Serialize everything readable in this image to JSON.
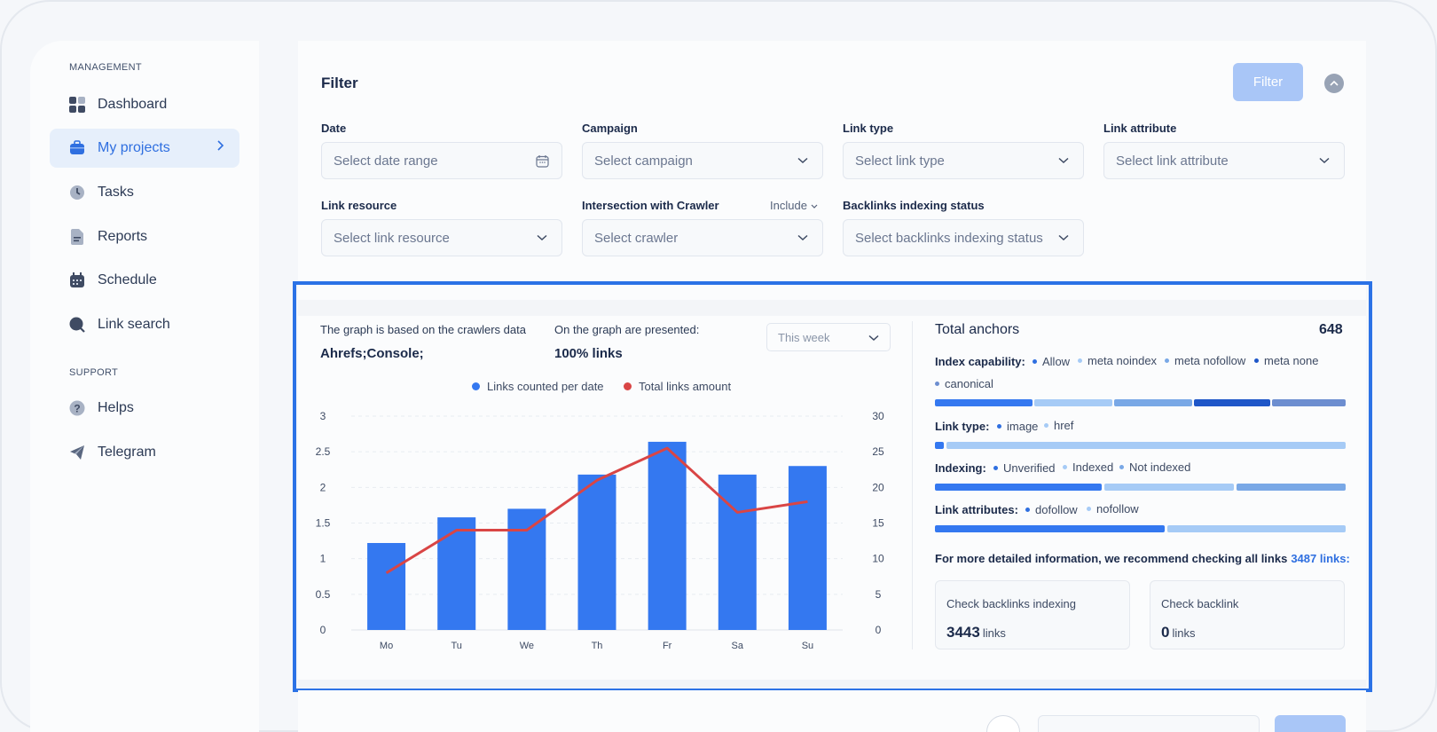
{
  "sidebar": {
    "management_label": "MANAGEMENT",
    "support_label": "SUPPORT",
    "items": [
      {
        "label": "Dashboard",
        "icon": "dashboard-icon"
      },
      {
        "label": "My projects",
        "icon": "briefcase-icon"
      },
      {
        "label": "Tasks",
        "icon": "clock-icon"
      },
      {
        "label": "Reports",
        "icon": "document-icon"
      },
      {
        "label": "Schedule",
        "icon": "calendar-icon"
      },
      {
        "label": "Link search",
        "icon": "search-icon"
      }
    ],
    "support_items": [
      {
        "label": "Helps",
        "icon": "help-icon"
      },
      {
        "label": "Telegram",
        "icon": "telegram-icon"
      }
    ]
  },
  "filter": {
    "title": "Filter",
    "button_label": "Filter",
    "fields": [
      {
        "label": "Date",
        "placeholder": "Select date range"
      },
      {
        "label": "Campaign",
        "placeholder": "Select campaign"
      },
      {
        "label": "Link type",
        "placeholder": "Select link type"
      },
      {
        "label": "Link attribute",
        "placeholder": "Select link attribute"
      },
      {
        "label": "Link resource",
        "placeholder": "Select link resource"
      },
      {
        "label": "Intersection with Crawler",
        "placeholder": "Select crawler"
      },
      {
        "label": "Backlinks indexing status",
        "placeholder": "Select backlinks indexing status"
      }
    ],
    "include_label": "Include"
  },
  "graph_info": {
    "based_on_label": "The graph is based on the crawlers data",
    "based_on_value": "Ahrefs;Console;",
    "presented_label": "On the graph are presented:",
    "presented_value": "100% links",
    "period": "This week"
  },
  "colors": {
    "accent": "#2f6fe0",
    "bar": "#3478f0",
    "line": "#d94545"
  },
  "chart_data": {
    "type": "bar",
    "categories": [
      "Mo",
      "Tu",
      "We",
      "Th",
      "Fr",
      "Sa",
      "Su"
    ],
    "series": [
      {
        "name": "Links counted per date",
        "type": "bar",
        "axis": "left",
        "values": [
          1.22,
          1.58,
          1.7,
          2.18,
          2.64,
          2.18,
          2.3
        ],
        "color": "#3478f0"
      },
      {
        "name": "Total links amount",
        "type": "line",
        "axis": "right",
        "values": [
          8,
          14,
          14,
          21,
          25.5,
          16.5,
          18
        ],
        "color": "#d94545"
      }
    ],
    "ylim_left": [
      0,
      3
    ],
    "yticks_left": [
      "0",
      "0.5",
      "1",
      "1.5",
      "2",
      "2.5",
      "3"
    ],
    "ylim_right": [
      0,
      30
    ],
    "yticks_right": [
      "0",
      "5",
      "10",
      "15",
      "20",
      "25",
      "30"
    ],
    "grid": true,
    "legend_position": "top-center"
  },
  "anchors": {
    "title": "Total anchors",
    "total": "648",
    "index_capability": {
      "label": "Index capability:",
      "tags": [
        "Allow",
        "meta noindex",
        "meta nofollow",
        "meta none",
        "canonical"
      ]
    },
    "link_type": {
      "label": "Link type:",
      "tags": [
        "image",
        "href"
      ]
    },
    "indexing": {
      "label": "Indexing:",
      "tags": [
        "Unverified",
        "Indexed",
        "Not indexed"
      ]
    },
    "link_attributes": {
      "label": "Link attributes:",
      "tags": [
        "dofollow",
        "nofollow"
      ]
    },
    "more_info": "For more detailed information, we recommend checking all links",
    "more_info_link": "3487 links:",
    "cards": [
      {
        "label": "Check backlinks indexing",
        "value": "3443",
        "unit": "links"
      },
      {
        "label": "Check backlink",
        "value": "0",
        "unit": "links"
      }
    ]
  }
}
